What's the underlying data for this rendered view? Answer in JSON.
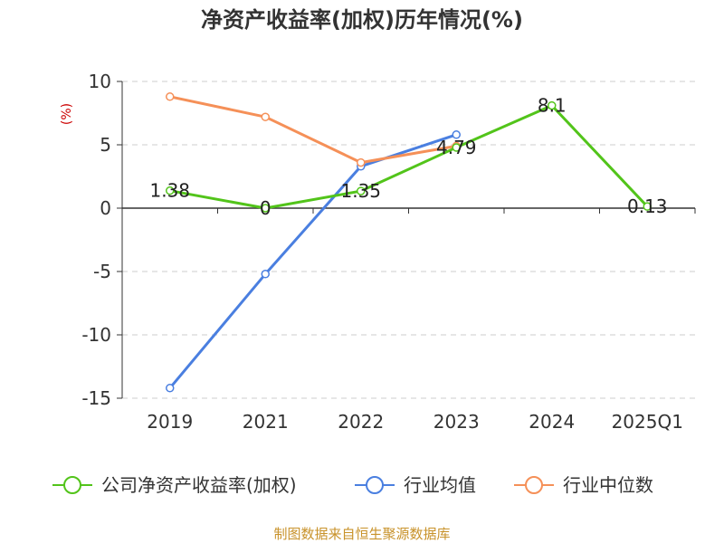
{
  "chart_data": {
    "type": "line",
    "title": "净资产收益率(加权)历年情况(%)",
    "ylabel": "(%)",
    "categories": [
      "2019",
      "2021",
      "2022",
      "2023",
      "2024",
      "2025Q1"
    ],
    "ylim": [
      -15,
      10
    ],
    "yticks": [
      10,
      5,
      0,
      -5,
      -10,
      -15
    ],
    "grid": true,
    "legend_position": "bottom",
    "series": [
      {
        "name": "公司净资产收益率(加权)",
        "color": "#52c41a",
        "values": [
          1.38,
          0,
          1.35,
          4.79,
          8.1,
          0.13
        ],
        "labels": [
          "1.38",
          "0",
          "1.35",
          "4.79",
          "8.1",
          "0.13"
        ]
      },
      {
        "name": "行业均值",
        "color": "#4a7fe0",
        "values": [
          -14.2,
          -5.2,
          3.3,
          5.8,
          null,
          null
        ]
      },
      {
        "name": "行业中位数",
        "color": "#f59058",
        "values": [
          8.8,
          7.2,
          3.6,
          4.9,
          null,
          null
        ]
      }
    ]
  },
  "source": "制图数据来自恒生聚源数据库"
}
